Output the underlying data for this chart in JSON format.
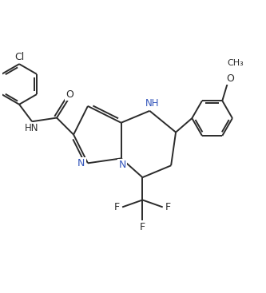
{
  "figure_width": 3.33,
  "figure_height": 3.67,
  "dpi": 100,
  "bg_color": "#ffffff",
  "line_color": "#2b2b2b",
  "line_width": 1.4,
  "font_size": 8.5,
  "N_color": "#3355bb",
  "xlim": [
    -2.5,
    8.5
  ],
  "ylim": [
    -3.5,
    7.5
  ]
}
